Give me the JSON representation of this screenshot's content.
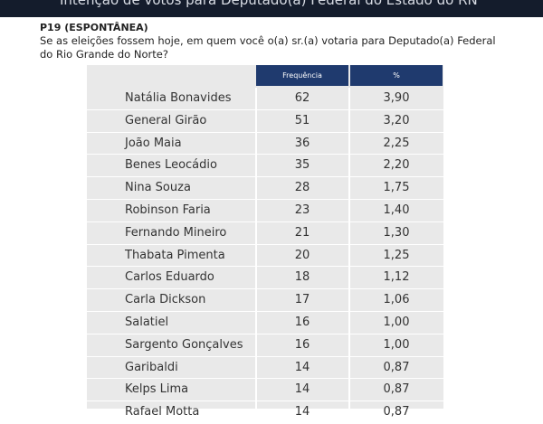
{
  "header": {
    "title": "Intenção de votos para Deputado(a) Federal do Estado do RN"
  },
  "question": {
    "label": "P19 (ESPONTÂNEA)",
    "text": "Se as eleições fossem hoje, em quem você o(a) sr.(a) votaria para Deputado(a) Federal do Rio Grande do Norte?"
  },
  "table": {
    "columns": [
      "Frequência",
      "%"
    ],
    "rows": [
      [
        "Natália Bonavides",
        62,
        "3,90"
      ],
      [
        "General Girão",
        51,
        "3,20"
      ],
      [
        "João Maia",
        36,
        "2,25"
      ],
      [
        "Benes Leocádio",
        35,
        "2,20"
      ],
      [
        "Nina Souza",
        28,
        "1,75"
      ],
      [
        "Robinson Faria",
        23,
        "1,40"
      ],
      [
        "Fernando Mineiro",
        21,
        "1,30"
      ],
      [
        "Thabata Pimenta",
        20,
        "1,25"
      ],
      [
        "Carlos Eduardo",
        18,
        "1,12"
      ],
      [
        "Carla Dickson",
        17,
        "1,06"
      ],
      [
        "Salatiel",
        16,
        "1,00"
      ],
      [
        "Sargento Gonçalves",
        16,
        "1,00"
      ],
      [
        "Garibaldi",
        14,
        "0,87"
      ],
      [
        "Kelps Lima",
        14,
        "0,87"
      ],
      [
        "Rafael Motta",
        14,
        "0,87"
      ]
    ]
  }
}
